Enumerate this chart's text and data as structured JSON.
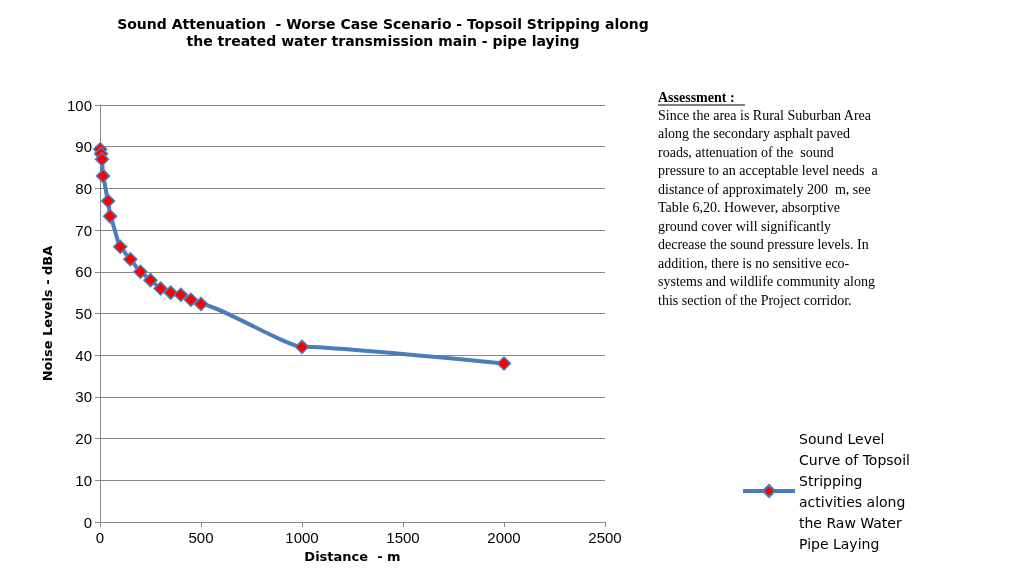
{
  "chart_data": {
    "type": "line",
    "title": "Sound Attenuation  - Worse Case Scenario - Topsoil Stripping along\nthe treated water transmission main - pipe laying",
    "xlabel": "Distance  - m",
    "ylabel": "Noise Levels - dBA",
    "x": [
      1,
      5,
      10,
      15,
      40,
      50,
      100,
      150,
      200,
      250,
      300,
      350,
      400,
      450,
      500,
      1000,
      2000
    ],
    "series": [
      {
        "name": "Sound Level Curve of Topsoil Stripping activities along the Raw Water Pipe Laying",
        "color": "#4a7ebb",
        "values": [
          89.4,
          88.3,
          87,
          83,
          77,
          73.3,
          66,
          63,
          60,
          58,
          56,
          55,
          54.5,
          53.3,
          52.3,
          42,
          38
        ]
      }
    ],
    "xlim": [
      0,
      2500
    ],
    "xticks": [
      0,
      500,
      1000,
      1500,
      2000,
      2500
    ],
    "ylim": [
      0,
      100
    ],
    "yticks": [
      0,
      10,
      20,
      30,
      40,
      50,
      60,
      70,
      80,
      90,
      100
    ],
    "grid": "y",
    "legend": "right",
    "marker": "diamond",
    "line_style": "solid",
    "annotations": [
      "Assessment :",
      "Since the area is Rural Suburban Area\nalong the secondary asphalt paved\nroads, attenuation of the  sound\npressure to an acceptable level needs  a\ndistance of approximately 200  m, see\nTable 6,20. However, absorptive\nground cover will significantly\ndecrease the sound pressure levels. In\naddition, there is no sensitive eco-\nsystems and wildlife community along\nthis section of the Project corridor."
    ]
  }
}
